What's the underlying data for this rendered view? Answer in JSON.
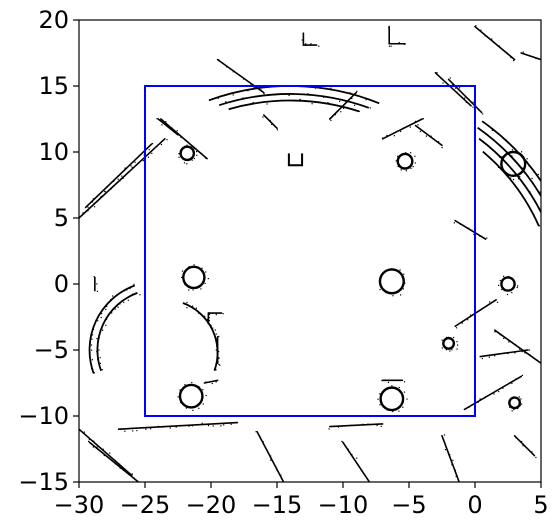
{
  "chart_data": {
    "type": "scatter",
    "title": "",
    "xlabel": "",
    "ylabel": "",
    "xlim": [
      -30,
      5
    ],
    "ylim": [
      -15,
      20
    ],
    "xticks": [
      -30,
      -25,
      -20,
      -15,
      -10,
      -5,
      0,
      5
    ],
    "yticks": [
      -15,
      -10,
      -5,
      0,
      5,
      10,
      15,
      20
    ],
    "xtick_labels": [
      "−30",
      "−25",
      "−20",
      "−15",
      "−10",
      "−5",
      "0",
      "5"
    ],
    "ytick_labels": [
      "−15",
      "−10",
      "−5",
      "0",
      "5",
      "10",
      "15",
      "20"
    ],
    "grid": false,
    "rectangle": {
      "x0": -25,
      "y0": -10,
      "x1": 0,
      "y1": 15,
      "color": "#0000ff"
    },
    "map_color": "#000000",
    "map_features": {
      "circles": [
        {
          "cx": -6.3,
          "cy": 0.2,
          "r": 0.9
        },
        {
          "cx": -21.3,
          "cy": 0.5,
          "r": 0.8
        },
        {
          "cx": -21.5,
          "cy": -8.5,
          "r": 0.85
        },
        {
          "cx": -6.3,
          "cy": -8.7,
          "r": 0.85
        },
        {
          "cx": 2.9,
          "cy": 9.1,
          "r": 0.9
        },
        {
          "cx": 2.5,
          "cy": 0.0,
          "r": 0.5
        },
        {
          "cx": -2.0,
          "cy": -4.5,
          "r": 0.4
        },
        {
          "cx": -5.3,
          "cy": 9.3,
          "r": 0.55
        },
        {
          "cx": 3.0,
          "cy": -9.0,
          "r": 0.4
        },
        {
          "cx": -21.8,
          "cy": 9.9,
          "r": 0.5
        }
      ],
      "arcs": [
        {
          "cx": -24.0,
          "cy": -5.0,
          "r": 5.2,
          "a0": 110,
          "a1": 200
        },
        {
          "cx": -24.0,
          "cy": -5.0,
          "r": 4.6,
          "a0": 110,
          "a1": 200
        },
        {
          "cx": -23.5,
          "cy": -5.2,
          "r": 4.0,
          "a0": -20,
          "a1": 70
        },
        {
          "cx": -14.0,
          "cy": -3.0,
          "r": 18.0,
          "a0": 68,
          "a1": 110
        },
        {
          "cx": -14.0,
          "cy": -3.0,
          "r": 17.4,
          "a0": 70,
          "a1": 108
        },
        {
          "cx": -14.0,
          "cy": -3.0,
          "r": 16.9,
          "a0": 72,
          "a1": 106
        },
        {
          "cx": -9.5,
          "cy": -2.0,
          "r": 17.5,
          "a0": 20,
          "a1": 55
        },
        {
          "cx": -9.5,
          "cy": -2.0,
          "r": 16.9,
          "a0": 20,
          "a1": 55
        },
        {
          "cx": -9.5,
          "cy": -2.0,
          "r": 16.3,
          "a0": 22,
          "a1": 53
        },
        {
          "cx": -9.5,
          "cy": -2.0,
          "r": 15.7,
          "a0": 24,
          "a1": 50
        }
      ],
      "lines": [
        [
          -30,
          5.0,
          -23.5,
          11.0
        ],
        [
          -29.5,
          5.8,
          -24.5,
          10.6
        ],
        [
          -23.8,
          12.5,
          -20.3,
          9.5
        ],
        [
          -19.5,
          17.0,
          -16.0,
          14.5
        ],
        [
          -24.0,
          12.5,
          -22.5,
          11.3
        ],
        [
          -3.0,
          16.0,
          -0.3,
          13.5
        ],
        [
          -2.0,
          15.5,
          0.5,
          13.0
        ],
        [
          -1.5,
          4.8,
          0.8,
          3.4
        ],
        [
          -28.8,
          0.5,
          -28.8,
          -0.5
        ],
        [
          -30,
          -11.0,
          -26.0,
          -14.5
        ],
        [
          -29.2,
          -12.0,
          -25.5,
          -15.0
        ],
        [
          -27.0,
          -11.0,
          -18.0,
          -10.5
        ],
        [
          -16.5,
          -11.2,
          -14.5,
          -15.0
        ],
        [
          -11.0,
          -10.8,
          -7.0,
          -10.6
        ],
        [
          -10.0,
          -12.0,
          -8.0,
          -15.0
        ],
        [
          -2.5,
          -11.5,
          -1.2,
          -15.0
        ],
        [
          3.0,
          -11.5,
          4.5,
          -13.0
        ],
        [
          1.5,
          -3.5,
          5.0,
          -6.0
        ],
        [
          -1.5,
          -3.2,
          1.6,
          -1.2
        ],
        [
          0.4,
          -5.5,
          4.0,
          -5.0
        ],
        [
          -0.8,
          -9.5,
          3.5,
          -7.0
        ],
        [
          -13.0,
          19.0,
          -13.0,
          18.1
        ],
        [
          -13.0,
          18.1,
          -12.0,
          18.1
        ],
        [
          -6.5,
          19.5,
          -6.5,
          18.2
        ],
        [
          -6.5,
          18.2,
          -5.3,
          18.2
        ],
        [
          0.0,
          19.5,
          3.0,
          17.0
        ],
        [
          3.5,
          17.5,
          5.0,
          17.0
        ],
        [
          -16.0,
          12.8,
          -15.0,
          11.8
        ],
        [
          -19.5,
          -4.0,
          -19.5,
          -6.0
        ],
        [
          -20.2,
          -2.2,
          -19.2,
          -2.2
        ],
        [
          -20.2,
          -2.2,
          -20.2,
          -3.0
        ],
        [
          -7.0,
          -7.3,
          -5.5,
          -7.3
        ],
        [
          -20.5,
          -7.5,
          -19.5,
          -7.3
        ],
        [
          -7.0,
          11.0,
          -4.0,
          12.5
        ],
        [
          -4.5,
          12.0,
          -2.5,
          10.5
        ],
        [
          -11.0,
          12.5,
          -9.0,
          14.5
        ]
      ],
      "squares": [
        {
          "x": -14.1,
          "y": 9.0,
          "w": 1.0,
          "h": 0.9
        }
      ]
    }
  }
}
